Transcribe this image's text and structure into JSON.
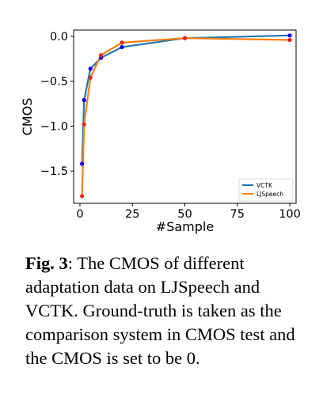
{
  "chart_data": {
    "type": "line",
    "xlabel": "#Sample",
    "ylabel": "CMOS",
    "xlim": [
      -3,
      103
    ],
    "ylim": [
      -1.86,
      0.07
    ],
    "xticks": [
      0,
      25,
      50,
      75,
      100
    ],
    "xtick_labels": [
      "0",
      "25",
      "50",
      "75",
      "100"
    ],
    "yticks": [
      0.0,
      -0.5,
      -1.0,
      -1.5
    ],
    "ytick_labels": [
      "0.0",
      "−0.5",
      "−1.0",
      "−1.5"
    ],
    "grid": false,
    "legend_position": "lower-right",
    "x": [
      1,
      2,
      5,
      10,
      20,
      50,
      100
    ],
    "series": [
      {
        "name": "VCTK",
        "color": "#1f77b4",
        "marker_color": "#0000ee",
        "values": [
          -1.42,
          -0.71,
          -0.36,
          -0.24,
          -0.12,
          -0.02,
          0.01
        ]
      },
      {
        "name": "LJSpeech",
        "color": "#ff7f0e",
        "marker_color": "#e8201a",
        "values": [
          -1.78,
          -0.98,
          -0.46,
          -0.21,
          -0.07,
          -0.02,
          -0.04
        ]
      }
    ]
  },
  "caption": {
    "label": "Fig. 3",
    "text": ": The CMOS of different adaptation data on LJSpeech and VCTK. Ground-truth is taken as the comparison system in CMOS test and the CMOS is set to be 0."
  }
}
